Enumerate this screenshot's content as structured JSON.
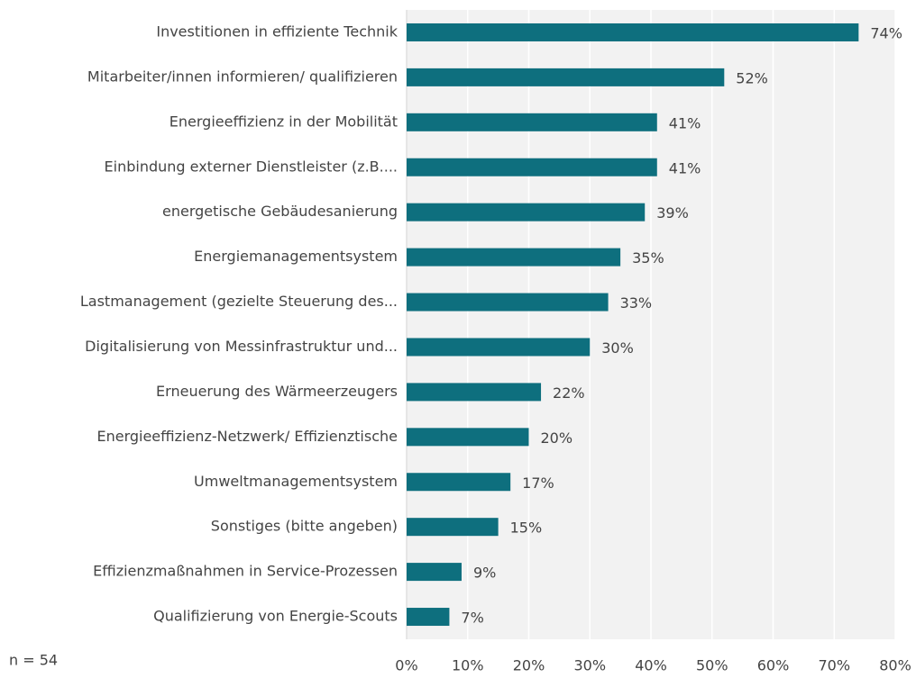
{
  "chart_data": {
    "type": "bar",
    "orientation": "horizontal",
    "categories": [
      "Investitionen in effiziente Technik",
      "Mitarbeiter/innen informieren/ qualifizieren",
      "Energieeffizienz in der Mobilität",
      "Einbindung externer Dienstleister (z.B....",
      "energetische Gebäudesanierung",
      "Energiemanagementsystem",
      "Lastmanagement (gezielte Steuerung des...",
      "Digitalisierung von Messinfrastruktur und...",
      "Erneuerung des Wärmeerzeugers",
      "Energieeffizienz-Netzwerk/ Effizienztische",
      "Umweltmanagementsystem",
      "Sonstiges (bitte angeben)",
      "Effizienzmaßnahmen in Service-Prozessen",
      "Qualifizierung von Energie-Scouts"
    ],
    "values": [
      74,
      52,
      41,
      41,
      39,
      35,
      33,
      30,
      22,
      20,
      17,
      15,
      9,
      7
    ],
    "value_labels": [
      "74%",
      "52%",
      "41%",
      "41%",
      "39%",
      "35%",
      "33%",
      "30%",
      "22%",
      "20%",
      "17%",
      "15%",
      "9%",
      "7%"
    ],
    "color": "#0e6f7e",
    "xlim": [
      0,
      80
    ],
    "xticks": [
      {
        "value": 0,
        "label": "0%"
      },
      {
        "value": 10,
        "label": "10%"
      },
      {
        "value": 20,
        "label": "20%"
      },
      {
        "value": 30,
        "label": "30%"
      },
      {
        "value": 40,
        "label": "40%"
      },
      {
        "value": 50,
        "label": "50%"
      },
      {
        "value": 60,
        "label": "60%"
      },
      {
        "value": 70,
        "label": "70%"
      },
      {
        "value": 80,
        "label": "80%"
      }
    ],
    "grid": true,
    "annotation": "n = 54"
  }
}
